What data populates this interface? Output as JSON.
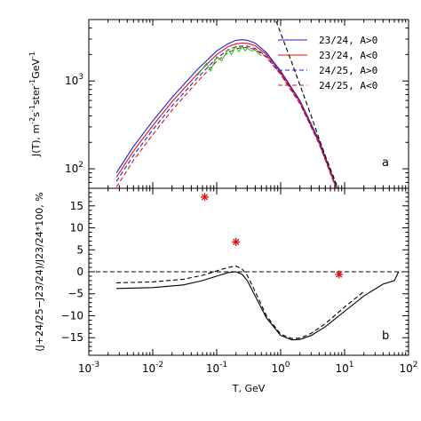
{
  "chart_data": [
    {
      "type": "line",
      "panel_label": "a",
      "xlabel": "T, GeV",
      "ylabel_parts": [
        "J(T),  m",
        "-2",
        "s",
        "-1",
        "ster",
        "-1",
        "GeV",
        "-1"
      ],
      "xscale": "log",
      "yscale": "log",
      "xlim": [
        0.001,
        100
      ],
      "ylim": [
        60,
        5000
      ],
      "xticks": [
        0.001,
        0.01,
        0.1,
        1,
        10,
        100
      ],
      "yticks": [
        100,
        1000
      ],
      "ytick_labels": [
        {
          "base": "10",
          "exp": "2"
        },
        {
          "base": "10",
          "exp": "3"
        }
      ],
      "legend_position": "top-right",
      "series": [
        {
          "name": "23/24, A>0",
          "color": "#1f1fd0",
          "dash": "solid",
          "x": [
            0.0027,
            0.005,
            0.01,
            0.02,
            0.05,
            0.1,
            0.15,
            0.2,
            0.25,
            0.3,
            0.4,
            0.6,
            1,
            2,
            4,
            6,
            7,
            8
          ],
          "y": [
            90,
            180,
            350,
            650,
            1350,
            2200,
            2650,
            2900,
            2950,
            2900,
            2700,
            2100,
            1300,
            600,
            210,
            95,
            70,
            55
          ]
        },
        {
          "name": "23/24, A<0",
          "color": "#e01010",
          "dash": "solid",
          "x": [
            0.0027,
            0.005,
            0.01,
            0.02,
            0.05,
            0.1,
            0.15,
            0.2,
            0.25,
            0.3,
            0.4,
            0.6,
            1,
            2,
            4,
            6,
            7,
            8
          ],
          "y": [
            80,
            160,
            310,
            580,
            1200,
            2000,
            2450,
            2650,
            2700,
            2680,
            2520,
            2000,
            1250,
            580,
            200,
            92,
            68,
            55
          ]
        },
        {
          "name": "24/25, A>0",
          "color": "#1f1fd0",
          "dash": "dashed",
          "x": [
            0.0027,
            0.005,
            0.01,
            0.02,
            0.05,
            0.1,
            0.15,
            0.2,
            0.25,
            0.3,
            0.4,
            0.6,
            1,
            2,
            4,
            6,
            7,
            8
          ],
          "y": [
            72,
            142,
            278,
            520,
            1080,
            1820,
            2250,
            2450,
            2500,
            2480,
            2350,
            1900,
            1200,
            560,
            195,
            90,
            67,
            55
          ]
        },
        {
          "name": "24/25, A<0",
          "color": "#e01010",
          "dash": "dashed",
          "x": [
            0.0027,
            0.005,
            0.01,
            0.02,
            0.05,
            0.1,
            0.15,
            0.2,
            0.25,
            0.3,
            0.4,
            0.6,
            1,
            2,
            4,
            6,
            7,
            8
          ],
          "y": [
            62,
            125,
            245,
            465,
            980,
            1680,
            2100,
            2320,
            2400,
            2390,
            2280,
            1860,
            1180,
            550,
            192,
            88,
            66,
            55
          ]
        },
        {
          "name": "",
          "color": "#000000",
          "dash": "dashed",
          "x": [
            0.85,
            1,
            1.5,
            2,
            3,
            4,
            5,
            6,
            7,
            8
          ],
          "y": [
            4800,
            3500,
            1600,
            900,
            400,
            220,
            140,
            100,
            75,
            58
          ]
        },
        {
          "name": "",
          "color": "#22cc22",
          "dash": "solid",
          "x": [
            0.05,
            0.07,
            0.08,
            0.1,
            0.12,
            0.15,
            0.17,
            0.2,
            0.22,
            0.25,
            0.28,
            0.3,
            0.35,
            0.4,
            0.45,
            0.5
          ],
          "y": [
            1150,
            1600,
            1300,
            1900,
            1700,
            2300,
            2000,
            2500,
            2150,
            2450,
            2200,
            2350,
            2200,
            2250,
            2050,
            1950
          ]
        }
      ]
    },
    {
      "type": "line",
      "panel_label": "b",
      "xlabel": "T, GeV",
      "ylabel": "(J+24/25−J23/24)/J23/24*100, %",
      "xscale": "log",
      "xlim": [
        0.001,
        100
      ],
      "ylim": [
        -19,
        19
      ],
      "xticks": [
        0.001,
        0.01,
        0.1,
        1,
        10,
        100
      ],
      "xtick_labels": [
        {
          "base": "10",
          "exp": "-3"
        },
        {
          "base": "10",
          "exp": "-2"
        },
        {
          "base": "10",
          "exp": "-1"
        },
        {
          "base": "10",
          "exp": "0"
        },
        {
          "base": "10",
          "exp": "1"
        },
        {
          "base": "10",
          "exp": "2"
        }
      ],
      "yticks": [
        -15,
        -10,
        -5,
        0,
        5,
        10,
        15
      ],
      "ytick_labels": [
        "−15",
        "−10",
        "−5",
        "0",
        "5",
        "10",
        "15"
      ],
      "series": [
        {
          "name": "",
          "color": "#000000",
          "dash": "solid",
          "x": [
            0.0027,
            0.01,
            0.03,
            0.06,
            0.1,
            0.15,
            0.2,
            0.25,
            0.3,
            0.4,
            0.6,
            1,
            1.5,
            2,
            3,
            5,
            10,
            20,
            40,
            60,
            70
          ],
          "y": [
            -3.8,
            -3.6,
            -3.0,
            -2.0,
            -1.0,
            -0.2,
            0.0,
            -0.6,
            -2.0,
            -5.5,
            -10.5,
            -14.5,
            -15.5,
            -15.4,
            -14.5,
            -12.5,
            -9.0,
            -5.5,
            -2.8,
            -2.0,
            0
          ]
        },
        {
          "name": "",
          "color": "#000000",
          "dash": "dashed",
          "x": [
            0.0027,
            0.01,
            0.03,
            0.06,
            0.1,
            0.15,
            0.2,
            0.25,
            0.3,
            0.4,
            0.6,
            1,
            1.5,
            2,
            3,
            5,
            10,
            20
          ],
          "y": [
            -2.5,
            -2.3,
            -1.7,
            -0.8,
            0.2,
            1.0,
            1.3,
            0.6,
            -0.8,
            -4.5,
            -10.0,
            -14.2,
            -15.2,
            -15.1,
            -14.0,
            -11.8,
            -8.0,
            -4.5
          ]
        },
        {
          "name": "",
          "color": "#000000",
          "dash": "dashed",
          "x": [
            0.001,
            100
          ],
          "y": [
            0,
            0
          ]
        }
      ],
      "points": [
        {
          "x": 0.065,
          "y": 17.0,
          "color": "#e01010"
        },
        {
          "x": 0.2,
          "y": 6.8,
          "color": "#e01010"
        },
        {
          "x": 8.2,
          "y": -0.6,
          "color": "#e01010"
        }
      ]
    }
  ]
}
